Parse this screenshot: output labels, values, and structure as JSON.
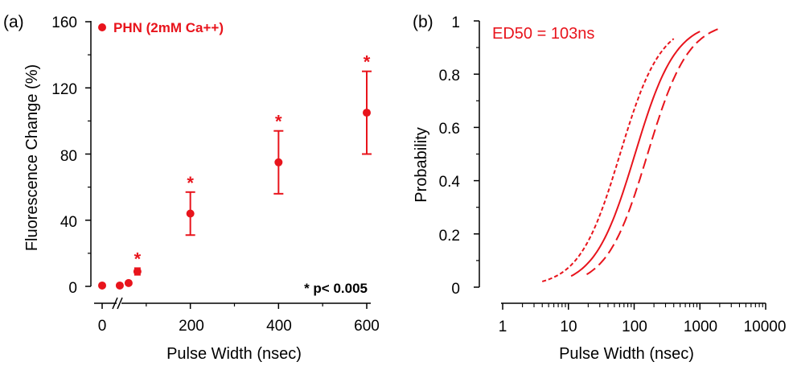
{
  "colors": {
    "series": "#e8141c",
    "axis": "#000000"
  },
  "chart_data": [
    {
      "panel": "(a)",
      "type": "scatter",
      "xlabel": "Pulse Width (nsec)",
      "ylabel": "Fluorescence Change (%)",
      "xlim": [
        0,
        600
      ],
      "ylim": [
        0,
        160
      ],
      "x_axis_break": true,
      "xticks": [
        "0",
        "200",
        "400",
        "600"
      ],
      "yticks": [
        "0",
        "40",
        "80",
        "120",
        "160"
      ],
      "legend": {
        "label": "PHN (2mM Ca++)",
        "position": "top-left"
      },
      "annotation": "* p< 0.005",
      "significance_marker": "*",
      "series": [
        {
          "name": "PHN (2mM Ca++)",
          "points": [
            {
              "x": 0,
              "y": 0.5,
              "err": 0,
              "sig": false
            },
            {
              "x": 40,
              "y": 0.5,
              "err": 0,
              "sig": false
            },
            {
              "x": 60,
              "y": 2,
              "err": 1,
              "sig": false
            },
            {
              "x": 80,
              "y": 9,
              "err": 2,
              "sig": true
            },
            {
              "x": 200,
              "y": 44,
              "err": 13,
              "sig": true
            },
            {
              "x": 400,
              "y": 75,
              "err": 19,
              "sig": true
            },
            {
              "x": 600,
              "y": 105,
              "err": 25,
              "sig": true
            }
          ]
        }
      ]
    },
    {
      "panel": "(b)",
      "type": "line",
      "xlabel": "Pulse Width (nsec)",
      "ylabel": "Probability",
      "xscale": "log",
      "xlim": [
        1,
        10000
      ],
      "ylim": [
        0,
        1
      ],
      "xticks": [
        "1",
        "10",
        "100",
        "1000",
        "10000"
      ],
      "yticks": [
        "0",
        "0.2",
        "0.4",
        "0.6",
        "0.8",
        "1"
      ],
      "annotation": "ED50 = 103ns",
      "series": [
        {
          "style": "dotted",
          "ed50": 61,
          "x_range": [
            4,
            400
          ],
          "slope": 1.9
        },
        {
          "style": "solid",
          "ed50": 103,
          "x_range": [
            11,
            1000
          ],
          "slope": 1.9
        },
        {
          "style": "dashed",
          "ed50": 160,
          "x_range": [
            19,
            2000
          ],
          "slope": 1.9
        }
      ]
    }
  ]
}
